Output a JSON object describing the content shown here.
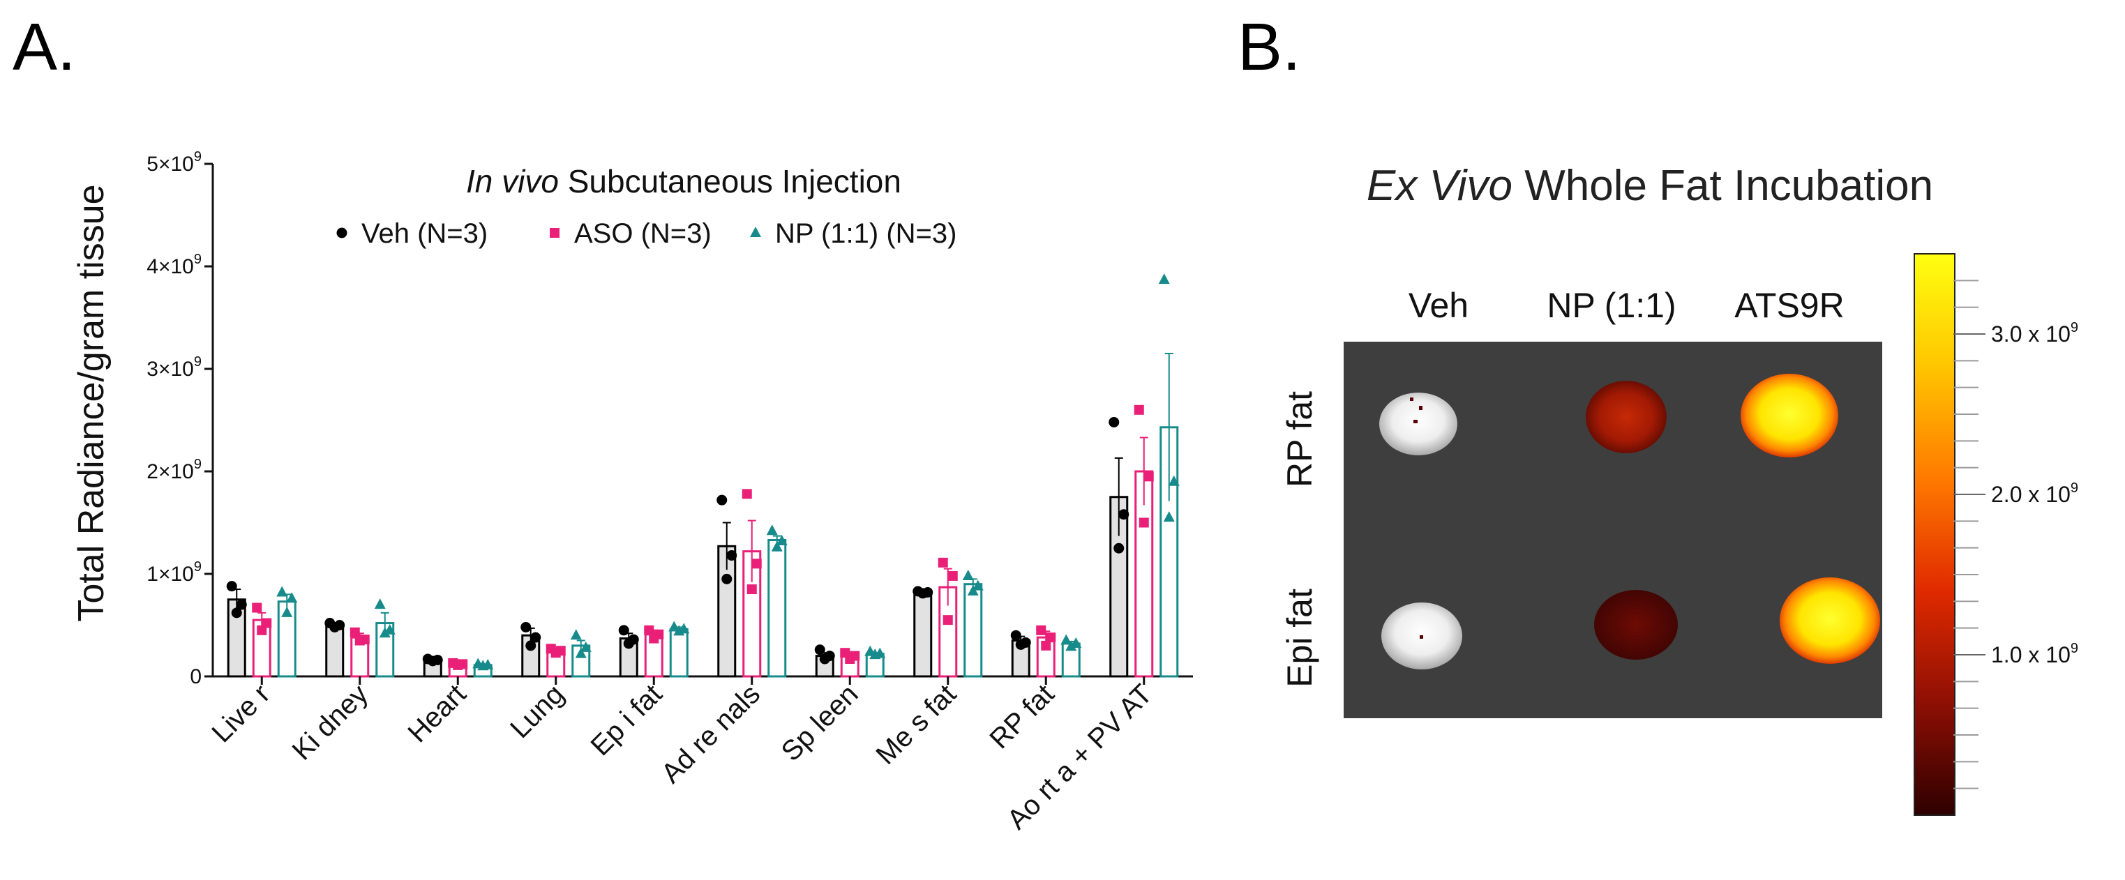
{
  "panel_labels": {
    "a": "A.",
    "b": "B."
  },
  "chart_data": [
    {
      "type": "bar",
      "title_italic": "In vivo",
      "title_rest": " Subcutaneous Injection",
      "ylabel": "Total Radiance/gram tissue",
      "ylim": [
        0,
        5000000000
      ],
      "yticks": [
        {
          "value": 0,
          "label": "0",
          "exp": ""
        },
        {
          "value": 1000000000,
          "label": "1×10",
          "exp": "9"
        },
        {
          "value": 2000000000,
          "label": "2×10",
          "exp": "9"
        },
        {
          "value": 3000000000,
          "label": "3×10",
          "exp": "9"
        },
        {
          "value": 4000000000,
          "label": "4×10",
          "exp": "9"
        },
        {
          "value": 5000000000,
          "label": "5×10",
          "exp": "9"
        }
      ],
      "legend_position": "top-center",
      "categories": [
        "Live r",
        "Ki dney",
        "Heart",
        "Lung",
        "Ep i fat",
        "Ad re nals",
        "Sp leen",
        "Me s fat",
        "RP  fat",
        "Ao rt a + PV AT"
      ],
      "series": [
        {
          "name": "Veh (N=3)",
          "color": "#000000",
          "fill": "#e2e2e2",
          "marker": "circle",
          "values": [
            750000000.0,
            500000000.0,
            160000000.0,
            400000000.0,
            370000000.0,
            1270000000.0,
            200000000.0,
            820000000.0,
            350000000.0,
            1750000000.0
          ],
          "errors": [
            100000000.0,
            20000000.0,
            10000000.0,
            70000000.0,
            50000000.0,
            230000000.0,
            30000000.0,
            10000000.0,
            40000000.0,
            380000000.0
          ],
          "points": [
            [
              880000000.0,
              700000000.0,
              620000000.0
            ],
            [
              520000000.0,
              500000000.0,
              480000000.0
            ],
            [
              170000000.0,
              160000000.0,
              150000000.0
            ],
            [
              480000000.0,
              380000000.0,
              300000000.0
            ],
            [
              450000000.0,
              360000000.0,
              320000000.0
            ],
            [
              1720000000.0,
              1180000000.0,
              950000000.0
            ],
            [
              260000000.0,
              200000000.0,
              170000000.0
            ],
            [
              830000000.0,
              820000000.0,
              810000000.0
            ],
            [
              400000000.0,
              330000000.0,
              310000000.0
            ],
            [
              2480000000.0,
              1580000000.0,
              1250000000.0
            ]
          ]
        },
        {
          "name": "ASO (N=3)",
          "color": "#ea1f77",
          "fill": "#ffffff",
          "marker": "square",
          "values": [
            550000000.0,
            380000000.0,
            120000000.0,
            250000000.0,
            410000000.0,
            1220000000.0,
            200000000.0,
            870000000.0,
            380000000.0,
            2000000000.0
          ],
          "errors": [
            70000000.0,
            40000000.0,
            10000000.0,
            20000000.0,
            40000000.0,
            300000000.0,
            20000000.0,
            180000000.0,
            60000000.0,
            330000000.0
          ],
          "points": [
            [
              670000000.0,
              520000000.0,
              450000000.0
            ],
            [
              430000000.0,
              360000000.0,
              350000000.0
            ],
            [
              130000000.0,
              120000000.0,
              110000000.0
            ],
            [
              270000000.0,
              250000000.0,
              230000000.0
            ],
            [
              450000000.0,
              410000000.0,
              370000000.0
            ],
            [
              1780000000.0,
              1100000000.0,
              850000000.0
            ],
            [
              230000000.0,
              200000000.0,
              170000000.0
            ],
            [
              1110000000.0,
              980000000.0,
              550000000.0
            ],
            [
              450000000.0,
              380000000.0,
              300000000.0
            ],
            [
              2600000000.0,
              1950000000.0,
              1500000000.0
            ]
          ]
        },
        {
          "name": "NP (1:1) (N=3)",
          "color": "#178b8b",
          "fill": "#ffffff",
          "marker": "triangle",
          "values": [
            730000000.0,
            520000000.0,
            110000000.0,
            300000000.0,
            460000000.0,
            1330000000.0,
            220000000.0,
            900000000.0,
            320000000.0,
            2430000000.0
          ],
          "errors": [
            70000000.0,
            100000000.0,
            10000000.0,
            50000000.0,
            20000000.0,
            40000000.0,
            10000000.0,
            50000000.0,
            20000000.0,
            720000000.0
          ],
          "points": [
            [
              820000000.0,
              760000000.0,
              620000000.0
            ],
            [
              700000000.0,
              450000000.0,
              420000000.0
            ],
            [
              120000000.0,
              110000000.0,
              100000000.0
            ],
            [
              400000000.0,
              280000000.0,
              220000000.0
            ],
            [
              480000000.0,
              460000000.0,
              440000000.0
            ],
            [
              1420000000.0,
              1320000000.0,
              1260000000.0
            ],
            [
              240000000.0,
              220000000.0,
              210000000.0
            ],
            [
              980000000.0,
              880000000.0,
              830000000.0
            ],
            [
              350000000.0,
              320000000.0,
              290000000.0
            ],
            [
              3870000000.0,
              1900000000.0,
              1550000000.0
            ]
          ]
        }
      ]
    },
    {
      "type": "heatmap",
      "title_italic": "Ex Vivo",
      "title_rest": " Whole Fat Incubation",
      "columns": [
        "Veh",
        "NP (1:1)",
        "ATS9R"
      ],
      "rows": [
        "RP fat",
        "Epi fat"
      ],
      "colorbar_ticks": [
        {
          "value": 3000000000,
          "label": "3.0 x 10",
          "exp": "9"
        },
        {
          "value": 2000000000,
          "label": "2.0 x 10",
          "exp": "9"
        },
        {
          "value": 1000000000,
          "label": "1.0 x 10",
          "exp": "9"
        }
      ],
      "colorbar_range": [
        0,
        3500000000
      ],
      "colorbar_colors": [
        "#2e0000",
        "#8e0f04",
        "#e02a00",
        "#ff7a00",
        "#ffc600",
        "#ffff10"
      ]
    }
  ]
}
